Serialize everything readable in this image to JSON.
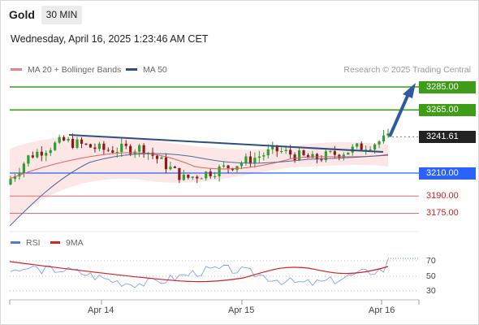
{
  "header": {
    "instrument": "Gold",
    "timeframe": "30 MIN"
  },
  "datetime": "Wednesday, April 16, 2025 1:23:46 AM CET",
  "legend": [
    {
      "label": "MA 20 + Bollinger Bands",
      "color": "#f08080"
    },
    {
      "label": "MA 50",
      "color": "#2f4f7f"
    }
  ],
  "credit": "Research © 2025 Trading Central",
  "levels": [
    {
      "label": "3285.00",
      "value": 3285.0,
      "style": "green"
    },
    {
      "label": "3265.00",
      "value": 3265.0,
      "style": "green"
    },
    {
      "label": "3241.61",
      "value": 3241.61,
      "style": "dark"
    },
    {
      "label": "3210.00",
      "value": 3210.0,
      "style": "blue"
    },
    {
      "label": "3190.00",
      "value": 3190.0,
      "style": "red"
    },
    {
      "label": "3175.00",
      "value": 3175.0,
      "style": "red"
    }
  ],
  "rsi": {
    "legend": [
      {
        "label": "RSI",
        "color": "#4a7be0"
      },
      {
        "label": "9MA",
        "color": "#e02020"
      }
    ],
    "ticks": [
      "70",
      "50",
      "30"
    ]
  },
  "x_axis": [
    "Apr 14",
    "Apr 15",
    "Apr 16"
  ],
  "colors": {
    "up": "#2e9e2e",
    "down": "#8b1a1a",
    "support": "#2962ff",
    "resistance": "#3f9c16",
    "trendline": "#2f4f7f"
  }
}
